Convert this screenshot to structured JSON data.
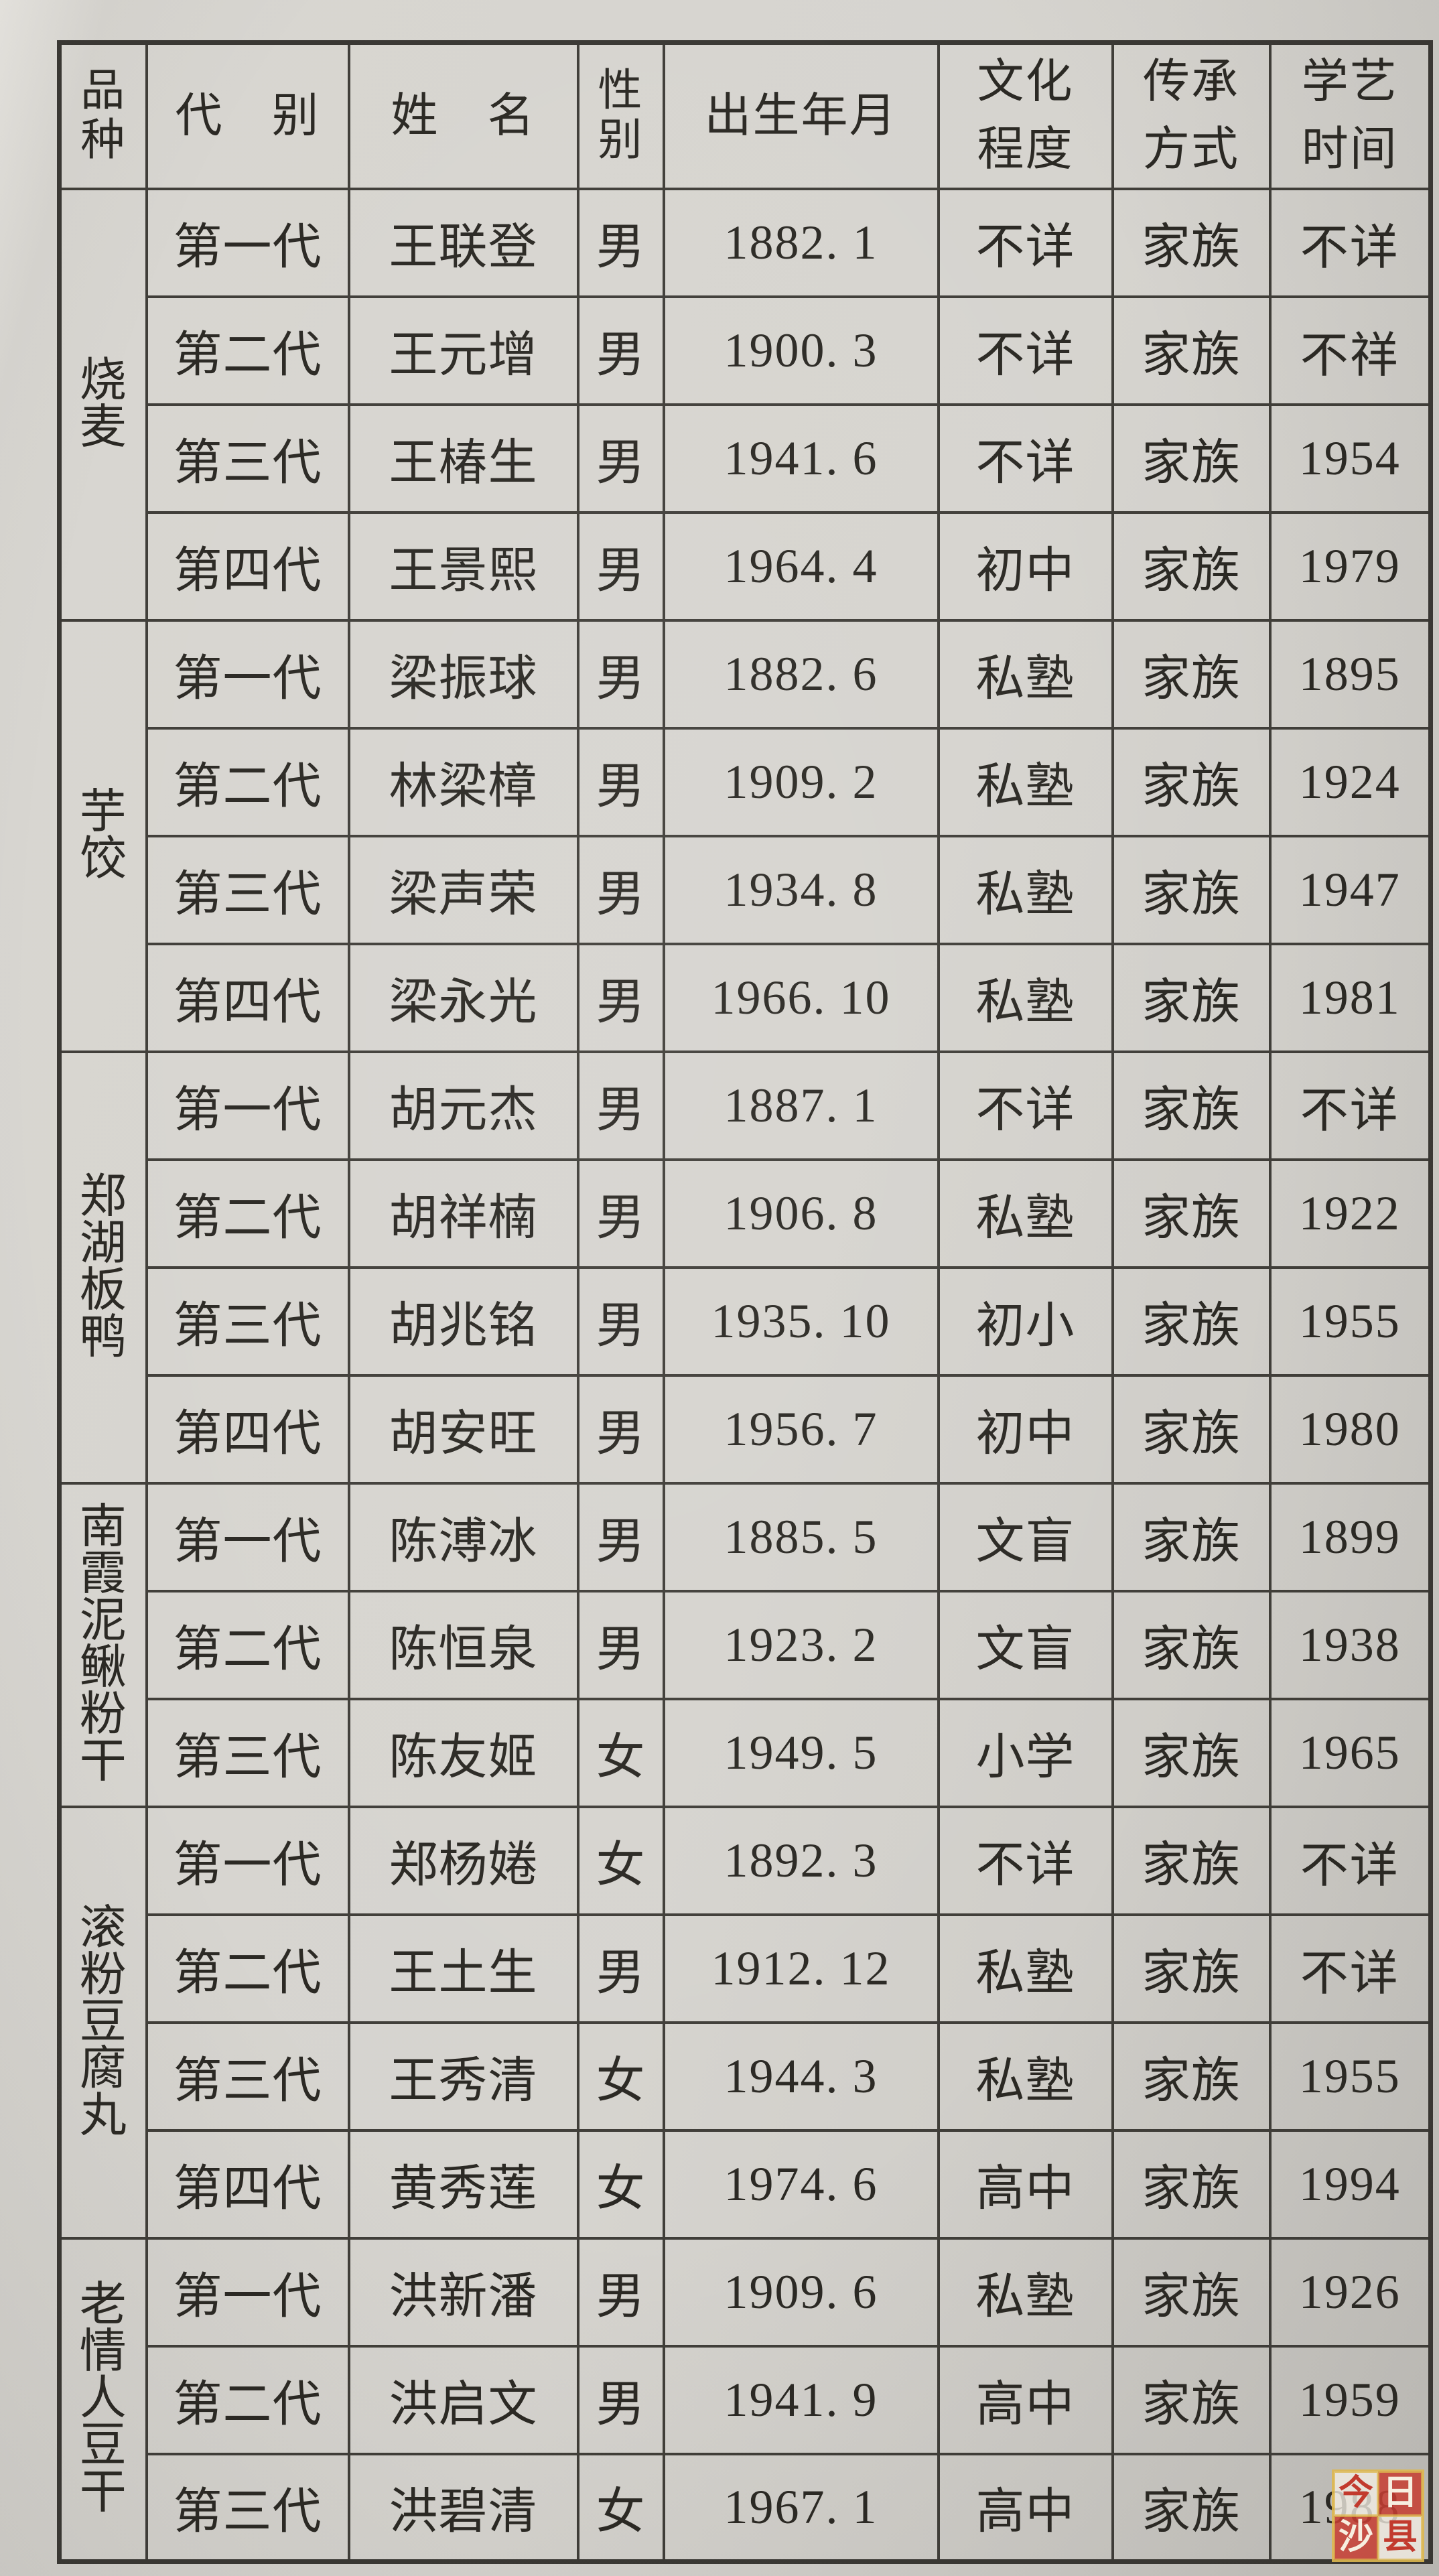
{
  "document_type": "生平传承表",
  "colors": {
    "paper": "#d6d4cf",
    "grid_line": "#403e39",
    "text": "#2b2924",
    "watermark_red": "#c63e32",
    "watermark_gold": "#deb84f"
  },
  "header": {
    "cells": [
      {
        "key": "variety",
        "label": "品\n种"
      },
      {
        "key": "generation",
        "label": "代　别"
      },
      {
        "key": "name",
        "label": "姓　名"
      },
      {
        "key": "gender",
        "label": "性\n别"
      },
      {
        "key": "birth",
        "label": "出生年月"
      },
      {
        "key": "education",
        "label": "文化\n程度"
      },
      {
        "key": "inheritance",
        "label": "传承\n方式"
      },
      {
        "key": "learning",
        "label": "学艺\n时间"
      }
    ]
  },
  "groups": [
    {
      "variety": "烧麦",
      "chars": [
        "烧",
        "麦"
      ],
      "rows": [
        {
          "generation": "第一代",
          "name": "王联登",
          "gender": "男",
          "birth": "1882. 1",
          "education": "不详",
          "inheritance": "家族",
          "learning": "不详"
        },
        {
          "generation": "第二代",
          "name": "王元增",
          "gender": "男",
          "birth": "1900. 3",
          "education": "不详",
          "inheritance": "家族",
          "learning": "不祥"
        },
        {
          "generation": "第三代",
          "name": "王椿生",
          "gender": "男",
          "birth": "1941. 6",
          "education": "不详",
          "inheritance": "家族",
          "learning": "1954"
        },
        {
          "generation": "第四代",
          "name": "王景熙",
          "gender": "男",
          "birth": "1964. 4",
          "education": "初中",
          "inheritance": "家族",
          "learning": "1979"
        }
      ]
    },
    {
      "variety": "芋饺",
      "chars": [
        "芋",
        "饺"
      ],
      "rows": [
        {
          "generation": "第一代",
          "name": "梁振球",
          "gender": "男",
          "birth": "1882. 6",
          "education": "私塾",
          "inheritance": "家族",
          "learning": "1895"
        },
        {
          "generation": "第二代",
          "name": "林梁樟",
          "gender": "男",
          "birth": "1909. 2",
          "education": "私塾",
          "inheritance": "家族",
          "learning": "1924"
        },
        {
          "generation": "第三代",
          "name": "梁声荣",
          "gender": "男",
          "birth": "1934. 8",
          "education": "私塾",
          "inheritance": "家族",
          "learning": "1947"
        },
        {
          "generation": "第四代",
          "name": "梁永光",
          "gender": "男",
          "birth": "1966. 10",
          "education": "私塾",
          "inheritance": "家族",
          "learning": "1981"
        }
      ]
    },
    {
      "variety": "郑湖板鸭",
      "chars": [
        "郑",
        "湖",
        "板",
        "鸭"
      ],
      "rows": [
        {
          "generation": "第一代",
          "name": "胡元杰",
          "gender": "男",
          "birth": "1887. 1",
          "education": "不详",
          "inheritance": "家族",
          "learning": "不详"
        },
        {
          "generation": "第二代",
          "name": "胡祥楠",
          "gender": "男",
          "birth": "1906. 8",
          "education": "私塾",
          "inheritance": "家族",
          "learning": "1922"
        },
        {
          "generation": "第三代",
          "name": "胡兆铭",
          "gender": "男",
          "birth": "1935. 10",
          "education": "初小",
          "inheritance": "家族",
          "learning": "1955"
        },
        {
          "generation": "第四代",
          "name": "胡安旺",
          "gender": "男",
          "birth": "1956. 7",
          "education": "初中",
          "inheritance": "家族",
          "learning": "1980"
        }
      ]
    },
    {
      "variety": "南霞泥鳅粉干",
      "chars": [
        "南",
        "霞",
        "泥",
        "鳅",
        "粉",
        "干"
      ],
      "rows": [
        {
          "generation": "第一代",
          "name": "陈溥冰",
          "gender": "男",
          "birth": "1885. 5",
          "education": "文盲",
          "inheritance": "家族",
          "learning": "1899"
        },
        {
          "generation": "第二代",
          "name": "陈恒泉",
          "gender": "男",
          "birth": "1923. 2",
          "education": "文盲",
          "inheritance": "家族",
          "learning": "1938"
        },
        {
          "generation": "第三代",
          "name": "陈友姬",
          "gender": "女",
          "birth": "1949. 5",
          "education": "小学",
          "inheritance": "家族",
          "learning": "1965"
        }
      ]
    },
    {
      "variety": "滚粉豆腐丸",
      "chars": [
        "滚",
        "粉",
        "豆",
        "腐",
        "丸"
      ],
      "rows": [
        {
          "generation": "第一代",
          "name": "郑杨婘",
          "gender": "女",
          "birth": "1892. 3",
          "education": "不详",
          "inheritance": "家族",
          "learning": "不详"
        },
        {
          "generation": "第二代",
          "name": "王土生",
          "gender": "男",
          "birth": "1912. 12",
          "education": "私塾",
          "inheritance": "家族",
          "learning": "不详"
        },
        {
          "generation": "第三代",
          "name": "王秀清",
          "gender": "女",
          "birth": "1944. 3",
          "education": "私塾",
          "inheritance": "家族",
          "learning": "1955"
        },
        {
          "generation": "第四代",
          "name": "黄秀莲",
          "gender": "女",
          "birth": "1974. 6",
          "education": "高中",
          "inheritance": "家族",
          "learning": "1994"
        }
      ]
    },
    {
      "variety": "老情人豆干",
      "chars": [
        "老",
        "情",
        "人",
        "豆",
        "干"
      ],
      "rows": [
        {
          "generation": "第一代",
          "name": "洪新潘",
          "gender": "男",
          "birth": "1909. 6",
          "education": "私塾",
          "inheritance": "家族",
          "learning": "1926"
        },
        {
          "generation": "第二代",
          "name": "洪启文",
          "gender": "男",
          "birth": "1941. 9",
          "education": "高中",
          "inheritance": "家族",
          "learning": "1959"
        },
        {
          "generation": "第三代",
          "name": "洪碧清",
          "gender": "女",
          "birth": "1967. 1",
          "education": "高中",
          "inheritance": "家族",
          "learning": "1988"
        }
      ]
    }
  ],
  "watermark": {
    "text": "今日沙县",
    "squares": [
      {
        "char": "今",
        "variant": "light"
      },
      {
        "char": "日",
        "variant": "red"
      },
      {
        "char": "沙",
        "variant": "red"
      },
      {
        "char": "县",
        "variant": "light"
      }
    ]
  }
}
